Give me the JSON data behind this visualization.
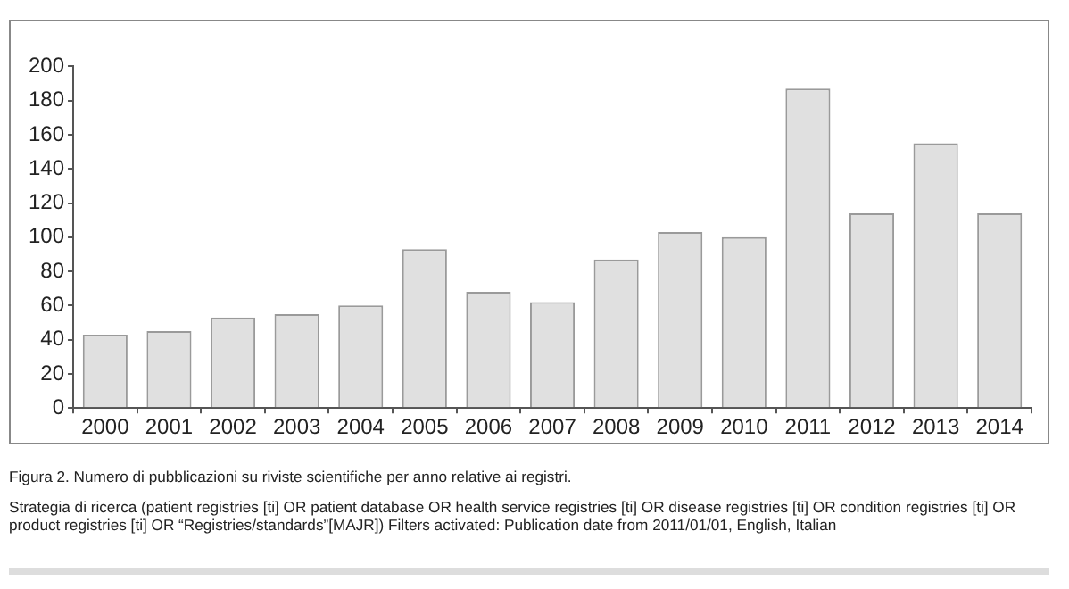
{
  "chart_data": {
    "type": "bar",
    "categories": [
      "2000",
      "2001",
      "2002",
      "2003",
      "2004",
      "2005",
      "2006",
      "2007",
      "2008",
      "2009",
      "2010",
      "2011",
      "2012",
      "2013",
      "2014"
    ],
    "values": [
      43,
      45,
      53,
      55,
      60,
      93,
      68,
      62,
      87,
      103,
      100,
      187,
      114,
      155,
      114
    ],
    "color": "#e0e0e0",
    "ylim": [
      0,
      200
    ],
    "yticks": [
      0,
      20,
      40,
      60,
      80,
      100,
      120,
      140,
      160,
      180,
      200
    ],
    "grid": false,
    "legend": false,
    "annotations": [
      "Figura 2. Numero di pubblicazioni su riviste scientifiche per anno relative ai registri.",
      "Strategia di ricerca (patient registries [ti] OR patient database OR health service registries [ti] OR disease registries [ti] OR condition registries [ti] OR product registries [ti] OR “Registries/standards”[MAJR]) Filters activated: Publication date from 2011/01/01, English, Italian"
    ]
  }
}
